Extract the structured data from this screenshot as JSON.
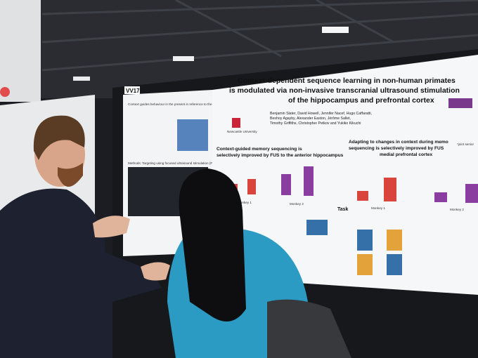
{
  "poster": {
    "board_label": "VV17",
    "title_lines": [
      "Context-dependent sequence learning in non-human primates",
      "is modulated via non-invasive transcranial ultrasound stimulation",
      "of the hippocampus and prefrontal cortex"
    ],
    "author_lines": [
      "Benjamin Slater, David Howell, Jennifer Nacef, Hugo Caffaratti,",
      "Beshoy Agayby, Alexander Easton, Jérôme Sallet,",
      "Timothy Griffiths, Christopher Petkov and Yukiko Kikuchi"
    ],
    "institution": "Newcastle University",
    "joint_note": "*joint senior",
    "section1_lines": [
      "Context-guided memory sequencing is",
      "selectively improved by FUS to the anterior hippocampus"
    ],
    "section2_lines": [
      "Adapting to changes in context during memo",
      "sequencing is selectively improved by FUS",
      "medial prefrontal cortex"
    ],
    "monkey_labels": [
      "Monkey 1",
      "Monkey 2",
      "Monkey 1",
      "Monkey 2"
    ],
    "task_heading": "Task",
    "methods_heading": "Methods: Targeting using focused ultrasound stimulation (FUS)",
    "left_heading": "Context guides behaviour in the present in reference to the past"
  }
}
